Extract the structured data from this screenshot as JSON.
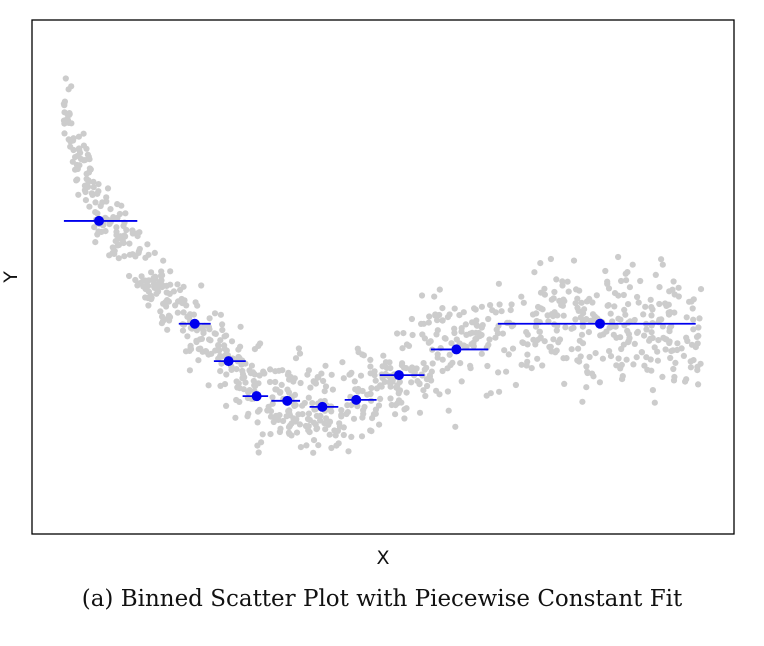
{
  "caption": "(a) Binned Scatter Plot with Piecewise Constant Fit",
  "chart_data": {
    "type": "scatter",
    "title": "",
    "xlabel": "X",
    "ylabel": "Y",
    "xlim": [
      -0.05,
      1.05
    ],
    "ylim": [
      -0.1,
      1.0
    ],
    "xticks": [],
    "yticks": [],
    "grid": false,
    "legend": "none",
    "colors": {
      "points": "#cccccc",
      "fit": "#0000ee",
      "frame": "#000000"
    },
    "scatter_points": {
      "n": 1000,
      "x_range": [
        0.0,
        1.0
      ],
      "trend": "U-shaped: high at small x, minimum near x≈0.4, rising again toward x≈0.8, flattening afterwards"
    },
    "bins": [
      {
        "x_start": 0.0,
        "x_end": 0.115,
        "x_center": 0.055,
        "y": 0.57
      },
      {
        "x_start": 0.18,
        "x_end": 0.23,
        "x_center": 0.205,
        "y": 0.35
      },
      {
        "x_start": 0.235,
        "x_end": 0.285,
        "x_center": 0.258,
        "y": 0.27
      },
      {
        "x_start": 0.28,
        "x_end": 0.32,
        "x_center": 0.302,
        "y": 0.195
      },
      {
        "x_start": 0.325,
        "x_end": 0.37,
        "x_center": 0.35,
        "y": 0.185
      },
      {
        "x_start": 0.385,
        "x_end": 0.43,
        "x_center": 0.405,
        "y": 0.172
      },
      {
        "x_start": 0.44,
        "x_end": 0.49,
        "x_center": 0.458,
        "y": 0.187
      },
      {
        "x_start": 0.495,
        "x_end": 0.565,
        "x_center": 0.525,
        "y": 0.24
      },
      {
        "x_start": 0.575,
        "x_end": 0.665,
        "x_center": 0.615,
        "y": 0.295
      },
      {
        "x_start": 0.68,
        "x_end": 0.99,
        "x_center": 0.84,
        "y": 0.35
      }
    ]
  }
}
